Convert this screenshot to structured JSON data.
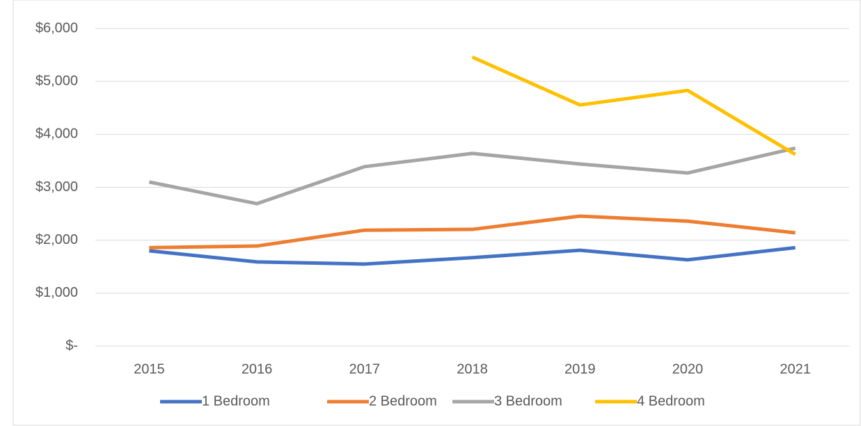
{
  "chart_data": {
    "type": "line",
    "categories": [
      "2015",
      "2016",
      "2017",
      "2018",
      "2019",
      "2020",
      "2021"
    ],
    "series": [
      {
        "name": "1 Bedroom",
        "color": "#4472c4",
        "values": [
          1800,
          1590,
          1550,
          1670,
          1810,
          1630,
          1860
        ]
      },
      {
        "name": "2 Bedroom",
        "color": "#ed7d31",
        "values": [
          1860,
          1890,
          2190,
          2205,
          2455,
          2360,
          2140
        ]
      },
      {
        "name": "3 Bedroom",
        "color": "#a5a5a5",
        "values": [
          3100,
          2690,
          3390,
          3640,
          3440,
          3270,
          3740
        ]
      },
      {
        "name": "4 Bedroom",
        "color": "#ffc000",
        "values": [
          null,
          null,
          null,
          5460,
          4555,
          4830,
          3620
        ]
      }
    ],
    "ylim": [
      0,
      6000
    ],
    "yticks": [
      {
        "value": 0,
        "label": "$-"
      },
      {
        "value": 1000,
        "label": "$1,000"
      },
      {
        "value": 2000,
        "label": "$2,000"
      },
      {
        "value": 3000,
        "label": "$3,000"
      },
      {
        "value": 4000,
        "label": "$4,000"
      },
      {
        "value": 5000,
        "label": "$5,000"
      },
      {
        "value": 6000,
        "label": "$6,000"
      }
    ],
    "grid": true,
    "legend": "bottom"
  }
}
